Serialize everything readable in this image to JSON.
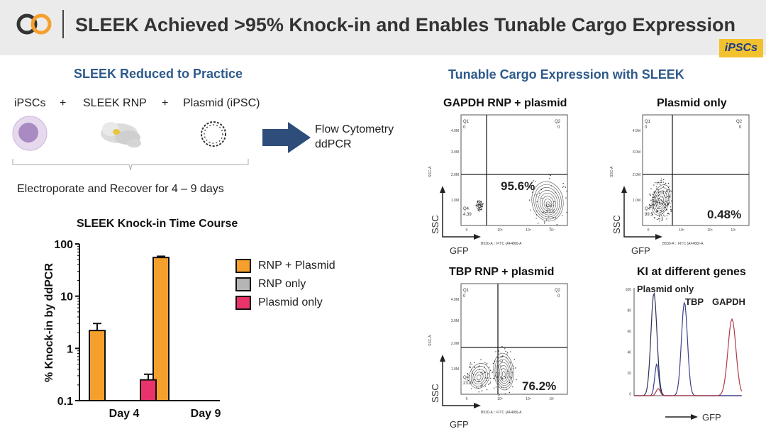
{
  "header": {
    "title": "SLEEK Achieved >95% Knock-in and Enables Tunable Cargo Expression",
    "badge": "iPSCs",
    "logo_icon": "eo-logo-icon"
  },
  "left": {
    "section_title": "SLEEK Reduced to Practice",
    "workflow": {
      "item1": "iPSCs",
      "plus1": "+",
      "item2": "SLEEK RNP",
      "plus2": "+",
      "item3": "Plasmid (iPSC)",
      "step": "Electroporate and Recover for 4 – 9 days",
      "output1": "Flow Cytometry",
      "output2": "ddPCR"
    },
    "chart_title": "SLEEK Knock-in Time Course"
  },
  "chart_data": {
    "type": "bar",
    "title": "SLEEK Knock-in Time Course",
    "ylabel": "% Knock-in by ddPCR",
    "yscale": "log",
    "ylim": [
      0.1,
      100
    ],
    "yticks": [
      "0.1",
      "1",
      "10",
      "100"
    ],
    "categories": [
      "Day 4",
      "Day 9"
    ],
    "series": [
      {
        "name": "RNP + Plasmid",
        "color": "#f5a02d",
        "values": [
          2.2,
          55
        ],
        "error_upper": [
          3.0,
          58
        ]
      },
      {
        "name": "RNP only",
        "color": "#b5b5b5",
        "values": [
          null,
          null
        ]
      },
      {
        "name": "Plasmid only",
        "color": "#e8336b",
        "values": [
          0.25,
          null
        ],
        "error_upper": [
          0.32,
          null
        ]
      }
    ],
    "legend_position": "right"
  },
  "right": {
    "section_title": "Tunable Cargo Expression with SLEEK",
    "panels": {
      "gapdh": {
        "title": "GAPDH RNP + plasmid",
        "percent": "95.6%",
        "q1": "Q1",
        "q1v": "0",
        "q2": "Q2",
        "q2v": "0",
        "q3": "Q3",
        "q3v": "95.6",
        "q4": "Q4",
        "q4v": "4.39"
      },
      "plasmid": {
        "title": "Plasmid only",
        "percent": "0.48%",
        "q1": "Q1",
        "q1v": "0",
        "q2": "Q2",
        "q2v": "0",
        "q4": "Q4",
        "q4v": "99.5"
      },
      "tbp": {
        "title": "TBP RNP + plasmid",
        "percent": "76.2%",
        "q1": "Q1",
        "q1v": "0",
        "q2": "Q2",
        "q2v": "0",
        "q4": "Q4",
        "q4v": "23.8"
      },
      "ki": {
        "title": "KI at different genes",
        "label_plasmid": "Plasmid only",
        "label_tbp": "TBP",
        "label_gapdh": "GAPDH",
        "xlabel": "GFP"
      }
    },
    "flow_axis": {
      "ssc": "SSC",
      "gfp": "GFP",
      "ssc_small": "SSC-A",
      "gfp_small": "B530-A :: FITC (AF488)-A",
      "yticks": [
        "4.0M",
        "3.0M",
        "2.0M",
        "1.0M"
      ],
      "xticks": [
        "0",
        "10⁵",
        "10⁶",
        "10⁷"
      ]
    },
    "histogram_yticks": [
      "100",
      "80",
      "60",
      "40",
      "20",
      "0"
    ]
  }
}
